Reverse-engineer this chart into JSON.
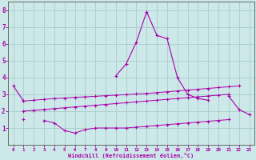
{
  "title": "",
  "xlabel": "Windchill (Refroidissement éolien,°C)",
  "bg_color": "#cce8e8",
  "grid_color": "#aacccc",
  "line_color": "#aa00aa",
  "x_values": [
    0,
    1,
    2,
    3,
    4,
    5,
    6,
    7,
    8,
    9,
    10,
    11,
    12,
    13,
    14,
    15,
    16,
    17,
    18,
    19,
    20,
    21,
    22,
    23
  ],
  "series": {
    "main": [
      3.5,
      2.6,
      null,
      null,
      null,
      null,
      null,
      null,
      null,
      null,
      4.1,
      4.8,
      6.1,
      7.9,
      6.5,
      6.3,
      4.0,
      3.0,
      2.75,
      2.65,
      null,
      2.9,
      2.1,
      1.8
    ],
    "upper_band": [
      null,
      2.6,
      2.65,
      2.7,
      2.75,
      2.78,
      2.82,
      2.85,
      2.88,
      2.92,
      2.95,
      2.98,
      3.02,
      3.05,
      3.1,
      3.15,
      3.2,
      3.25,
      3.3,
      3.35,
      3.4,
      3.45,
      3.5,
      null
    ],
    "mid_band": [
      null,
      2.0,
      2.05,
      2.1,
      2.15,
      2.2,
      2.25,
      2.3,
      2.35,
      2.4,
      2.45,
      2.5,
      2.55,
      2.6,
      2.65,
      2.7,
      2.75,
      2.8,
      2.85,
      2.9,
      2.95,
      3.0,
      null,
      null
    ],
    "lower_band": [
      null,
      1.5,
      null,
      1.45,
      1.3,
      0.85,
      0.7,
      0.9,
      1.0,
      1.0,
      1.0,
      1.0,
      1.05,
      1.1,
      1.15,
      1.2,
      1.25,
      1.3,
      1.35,
      1.4,
      1.45,
      1.5,
      null,
      null
    ]
  },
  "ylim": [
    0,
    8.5
  ],
  "xlim": [
    -0.5,
    23.5
  ],
  "yticks": [
    1,
    2,
    3,
    4,
    5,
    6,
    7,
    8
  ],
  "xticks": [
    0,
    1,
    2,
    3,
    4,
    5,
    6,
    7,
    8,
    9,
    10,
    11,
    12,
    13,
    14,
    15,
    16,
    17,
    18,
    19,
    20,
    21,
    22,
    23
  ],
  "marker_size": 3.0,
  "lw_main": 0.8,
  "lw_band": 0.7
}
